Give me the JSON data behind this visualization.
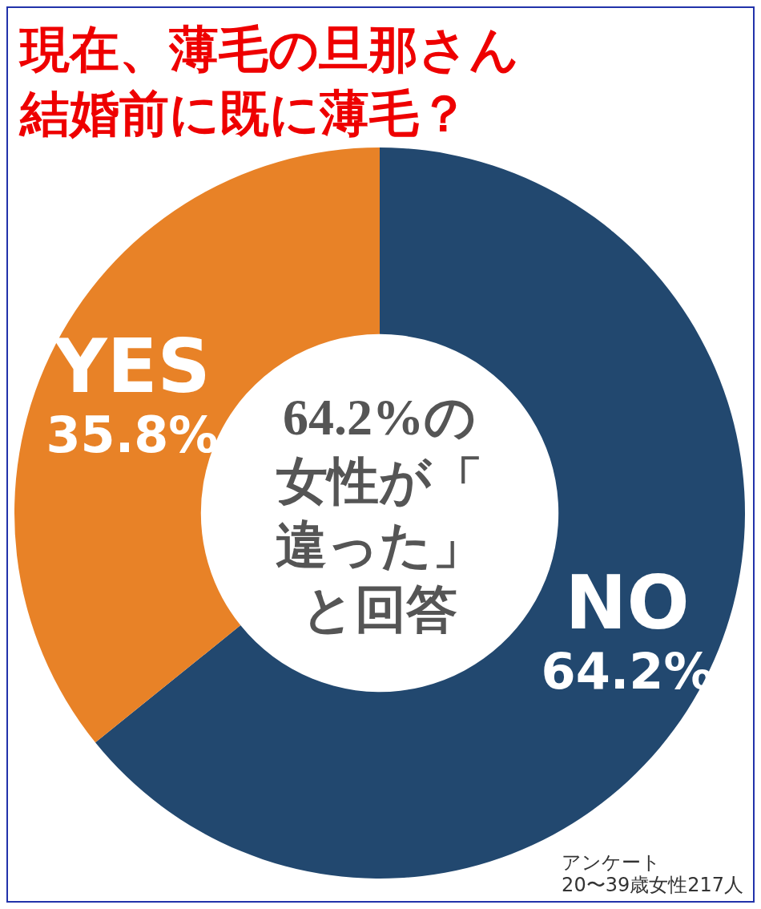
{
  "chart_data": {
    "type": "donut",
    "title": "現在、薄毛の旦那さん結婚前に既に薄毛？",
    "categories": [
      "NO",
      "YES"
    ],
    "values": [
      64.2,
      35.8
    ],
    "colors": [
      "#22486f",
      "#e88227"
    ],
    "value_labels": [
      "64.2%",
      "35.8%"
    ],
    "legend": false,
    "annotations": [
      "64.2%の女性が「違った」と回答",
      "アンケート",
      "20〜39歳女性217人"
    ]
  }
}
